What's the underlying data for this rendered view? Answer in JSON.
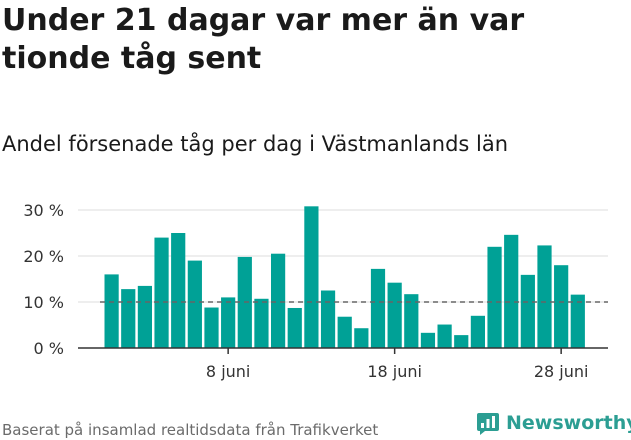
{
  "header": {
    "title": "Under 21 dagar var mer än var tionde tåg sent",
    "subtitle": "Andel försenade tåg per dag i Västmanlands län"
  },
  "footer": {
    "source": "Baserat på insamlad realtidsdata från Trafikverket",
    "brand": "Newsworthy",
    "brand_icon": "newsworthy-logo-icon"
  },
  "colors": {
    "bar": "#00a196",
    "grid": "#dddddd",
    "reference_line": "#666666",
    "axis": "#333333",
    "brand": "#2c9e93"
  },
  "chart_data": {
    "type": "bar",
    "title": "Andel försenade tåg per dag i Västmanlands län",
    "x": [
      1,
      2,
      3,
      4,
      5,
      6,
      7,
      8,
      9,
      10,
      11,
      12,
      13,
      14,
      15,
      16,
      17,
      18,
      19,
      20,
      21,
      22,
      23,
      24,
      25,
      26,
      27,
      28,
      29
    ],
    "values": [
      16,
      12.8,
      13.5,
      24,
      25,
      19,
      8.8,
      11,
      19.8,
      10.7,
      20.5,
      8.7,
      30.8,
      12.5,
      6.8,
      4.3,
      17.2,
      14.2,
      11.7,
      3.3,
      5.1,
      2.8,
      7,
      22,
      24.6,
      15.9,
      22.3,
      18,
      11.6
    ],
    "ylim": [
      0,
      30
    ],
    "y_ticks": [
      0,
      10,
      20,
      30
    ],
    "y_tick_labels": [
      "0 %",
      "10 %",
      "20 %",
      "30 %"
    ],
    "x_ticks": [
      8,
      18,
      28
    ],
    "x_tick_labels": [
      "8 juni",
      "18 juni",
      "28 juni"
    ],
    "reference_line": 10,
    "grid": true
  }
}
